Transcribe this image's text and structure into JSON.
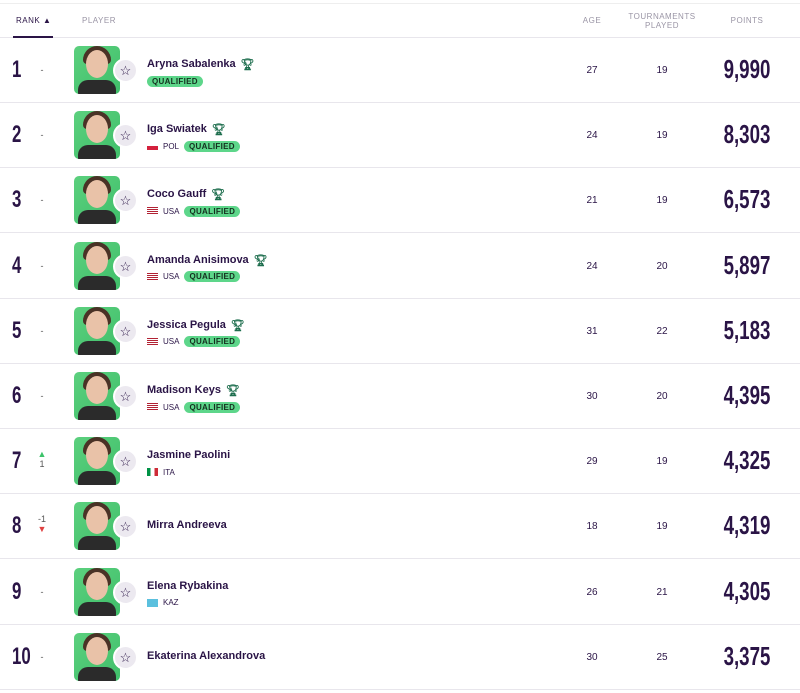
{
  "header": {
    "rank": "RANK ▲",
    "player": "PLAYER",
    "age": "AGE",
    "tournaments": "TOURNAMENTS PLAYED",
    "points": "POINTS"
  },
  "colors": {
    "primary": "#2a1446",
    "qualified": "#5dd68a",
    "up": "#3cc36a",
    "down": "#e04040",
    "avatar_bg": "#5cd07e"
  },
  "rows": [
    {
      "rank": "1",
      "move": "-",
      "dir": "none",
      "name": "Aryna Sabalenka",
      "trophy": true,
      "country": "",
      "qualified": "QUALIFIED",
      "age": "27",
      "tournaments": "19",
      "points": "9,990"
    },
    {
      "rank": "2",
      "move": "-",
      "dir": "none",
      "name": "Iga Swiatek",
      "trophy": true,
      "country": "POL",
      "qualified": "QUALIFIED",
      "age": "24",
      "tournaments": "19",
      "points": "8,303"
    },
    {
      "rank": "3",
      "move": "-",
      "dir": "none",
      "name": "Coco Gauff",
      "trophy": true,
      "country": "USA",
      "qualified": "QUALIFIED",
      "age": "21",
      "tournaments": "19",
      "points": "6,573"
    },
    {
      "rank": "4",
      "move": "-",
      "dir": "none",
      "name": "Amanda Anisimova",
      "trophy": true,
      "country": "USA",
      "qualified": "QUALIFIED",
      "age": "24",
      "tournaments": "20",
      "points": "5,897"
    },
    {
      "rank": "5",
      "move": "-",
      "dir": "none",
      "name": "Jessica Pegula",
      "trophy": true,
      "country": "USA",
      "qualified": "QUALIFIED",
      "age": "31",
      "tournaments": "22",
      "points": "5,183"
    },
    {
      "rank": "6",
      "move": "-",
      "dir": "none",
      "name": "Madison Keys",
      "trophy": true,
      "country": "USA",
      "qualified": "QUALIFIED",
      "age": "30",
      "tournaments": "20",
      "points": "4,395"
    },
    {
      "rank": "7",
      "move": "1",
      "dir": "up",
      "name": "Jasmine Paolini",
      "trophy": false,
      "country": "ITA",
      "qualified": "",
      "age": "29",
      "tournaments": "19",
      "points": "4,325"
    },
    {
      "rank": "8",
      "move": "-1",
      "dir": "down",
      "name": "Mirra Andreeva",
      "trophy": false,
      "country": "",
      "qualified": "",
      "age": "18",
      "tournaments": "19",
      "points": "4,319"
    },
    {
      "rank": "9",
      "move": "-",
      "dir": "none",
      "name": "Elena Rybakina",
      "trophy": false,
      "country": "KAZ",
      "qualified": "",
      "age": "26",
      "tournaments": "21",
      "points": "4,305"
    },
    {
      "rank": "10",
      "move": "-",
      "dir": "none",
      "name": "Ekaterina Alexandrova",
      "trophy": false,
      "country": "",
      "qualified": "",
      "age": "30",
      "tournaments": "25",
      "points": "3,375"
    }
  ]
}
